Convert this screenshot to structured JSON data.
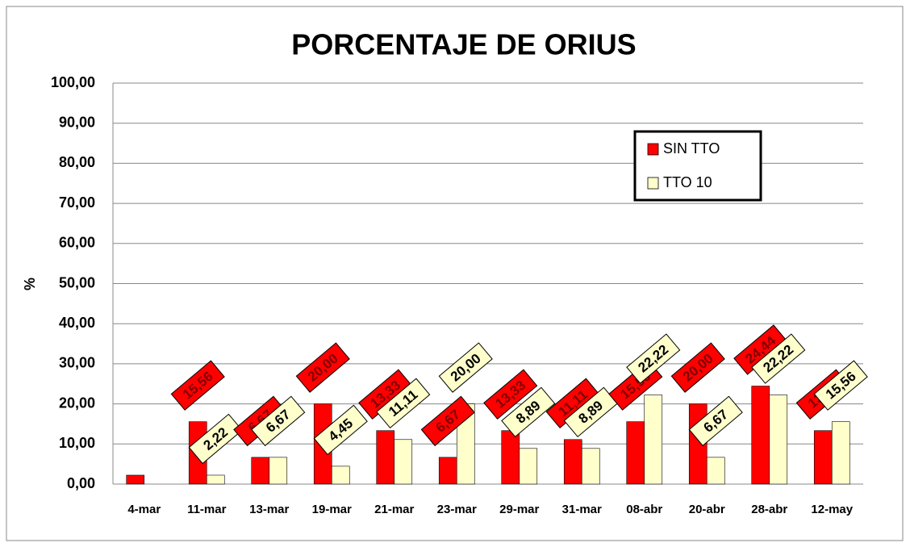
{
  "chart_data": {
    "type": "bar",
    "title": "PORCENTAJE DE ORIUS",
    "y_label": "%",
    "categories": [
      "4-mar",
      "11-mar",
      "13-mar",
      "19-mar",
      "21-mar",
      "23-mar",
      "29-mar",
      "31-mar",
      "08-abr",
      "20-abr",
      "28-abr",
      "12-may"
    ],
    "series": [
      {
        "name": "SIN TTO",
        "color": "#ff0000",
        "values": [
          2.22,
          15.56,
          6.67,
          20.0,
          13.33,
          6.67,
          13.33,
          11.11,
          15.56,
          20.0,
          24.44,
          13.33
        ],
        "value_labels": [
          null,
          "15,56",
          "6,67",
          "20,00",
          "13,33",
          "6,67",
          "13,33",
          "11,11",
          "15,56",
          "20,00",
          "24,44",
          "13,33"
        ]
      },
      {
        "name": "TTO 10",
        "color": "#ffffcc",
        "values": [
          null,
          2.22,
          6.67,
          4.45,
          11.11,
          20.0,
          8.89,
          8.89,
          22.22,
          6.67,
          22.22,
          15.56
        ],
        "value_labels": [
          null,
          "2,22",
          "6,67",
          "4,45",
          "11,11",
          "20,00",
          "8,89",
          "8,89",
          "22,22",
          "6,67",
          "22,22",
          "15,56"
        ]
      }
    ],
    "ylim": [
      0,
      100
    ],
    "yticks": [
      {
        "value": 0,
        "label": "0,00"
      },
      {
        "value": 10,
        "label": "10,00"
      },
      {
        "value": 20,
        "label": "20,00"
      },
      {
        "value": 30,
        "label": "30,00"
      },
      {
        "value": 40,
        "label": "40,00"
      },
      {
        "value": 50,
        "label": "50,00"
      },
      {
        "value": 60,
        "label": "60,00"
      },
      {
        "value": 70,
        "label": "70,00"
      },
      {
        "value": 80,
        "label": "80,00"
      },
      {
        "value": 90,
        "label": "90,00"
      },
      {
        "value": 100,
        "label": "100,00"
      }
    ],
    "grid": true,
    "legend": "upper right"
  }
}
